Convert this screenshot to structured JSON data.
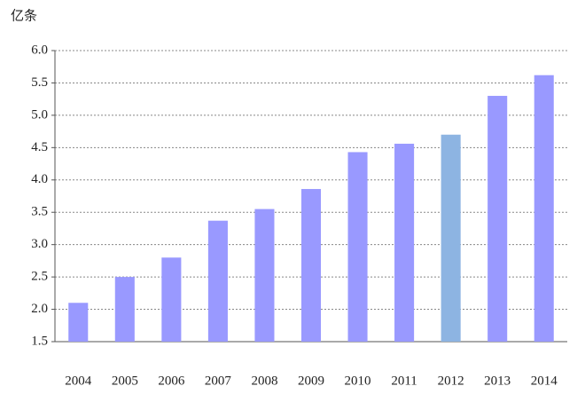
{
  "chart_data": {
    "type": "bar",
    "y_unit": "亿条",
    "categories": [
      "2004",
      "2005",
      "2006",
      "2007",
      "2008",
      "2009",
      "2010",
      "2011",
      "2012",
      "2013",
      "2014"
    ],
    "values": [
      2.1,
      2.5,
      2.8,
      3.37,
      3.55,
      3.86,
      4.43,
      4.56,
      4.7,
      5.3,
      5.62
    ],
    "colors": [
      "#9999ff",
      "#9999ff",
      "#9999ff",
      "#9999ff",
      "#9999ff",
      "#9999ff",
      "#9999ff",
      "#9999ff",
      "#8db4e2",
      "#9999ff",
      "#9999ff"
    ],
    "ylim": [
      1.5,
      6.0
    ],
    "yticks": [
      1.5,
      {
        "value": 2.0,
        "label": "2.0"
      },
      2.5,
      {
        "value": 3.0,
        "label": "3.0"
      },
      3.5,
      {
        "value": 4.0,
        "label": "4.0"
      },
      4.5,
      {
        "value": 5.0,
        "label": "5.0"
      },
      5.5,
      {
        "value": 6.0,
        "label": "6.0"
      }
    ],
    "grid": true
  }
}
